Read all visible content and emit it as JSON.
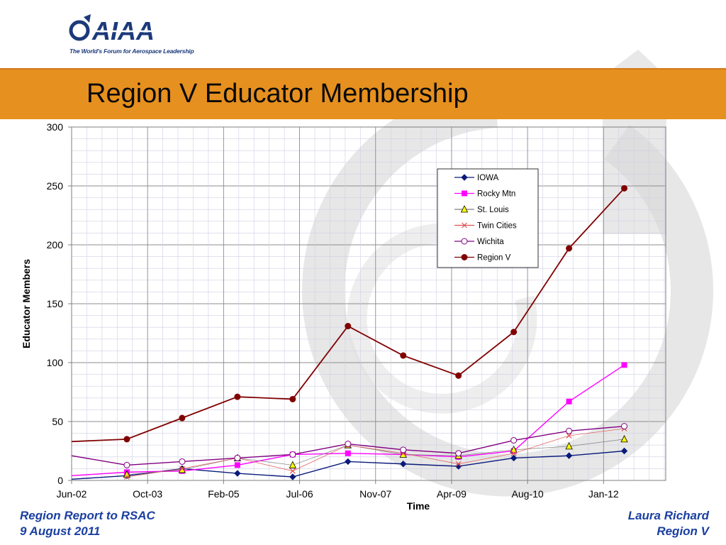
{
  "logo": {
    "wordmark": "AIAA",
    "tagline": "The World's Forum for Aerospace Leadership",
    "icon": "aiaa-arrow-logo-icon"
  },
  "slide": {
    "title": "Region V Educator Membership"
  },
  "footer": {
    "left_line1": "Region Report to RSAC",
    "left_line2": "9 August 2011",
    "right_line1": "Laura Richard",
    "right_line2": "Region V"
  },
  "colors": {
    "title_band": "#e6901f",
    "footer_text": "#1a3fa0",
    "watermark": "#bfbfbf"
  },
  "chart_data": {
    "type": "line",
    "title": "",
    "xlabel": "Time",
    "ylabel": "Educator Members",
    "ylim": [
      0,
      300
    ],
    "yticks": [
      0,
      50,
      100,
      150,
      200,
      250,
      300
    ],
    "xlim": [
      0,
      10.75
    ],
    "xticks": [
      {
        "label": "Jun-02",
        "x": 0
      },
      {
        "label": "Oct-03",
        "x": 1.375
      },
      {
        "label": "Feb-05",
        "x": 2.75
      },
      {
        "label": "Jul-06",
        "x": 4.125
      },
      {
        "label": "Nov-07",
        "x": 5.5
      },
      {
        "label": "Apr-09",
        "x": 6.875
      },
      {
        "label": "Aug-10",
        "x": 8.25
      },
      {
        "label": "Jan-12",
        "x": 9.625
      }
    ],
    "x": [
      1,
      2,
      3,
      4,
      5,
      6,
      7,
      8,
      9,
      10
    ],
    "legend_position": "upper-right",
    "grid": true,
    "series": [
      {
        "name": "IOWA",
        "color": "#0a1a7a",
        "marker": "diamond",
        "values": [
          4,
          10,
          6,
          3,
          16,
          14,
          12,
          19,
          21,
          25
        ],
        "start": 1
      },
      {
        "name": "Rocky Mtn",
        "color": "#ff00ff",
        "marker": "square",
        "values": [
          7,
          8,
          13,
          22,
          23,
          22,
          20,
          25,
          67,
          98
        ],
        "start": 4
      },
      {
        "name": "St. Louis",
        "color": "#7f7f7f",
        "marker": "triangle",
        "values": [
          5,
          9,
          19,
          13,
          30,
          22,
          21,
          26,
          29,
          35
        ],
        "start": null
      },
      {
        "name": "Twin Cities",
        "color": "#e05050",
        "marker": "x",
        "values": [
          3,
          10,
          19,
          8,
          30,
          23,
          14,
          23,
          38,
          44
        ],
        "start": null
      },
      {
        "name": "Wichita",
        "color": "#800080",
        "marker": "circle",
        "values": [
          13,
          16,
          19,
          22,
          31,
          26,
          23,
          34,
          42,
          46
        ],
        "start": 21
      },
      {
        "name": "Region V",
        "color": "#800000",
        "marker": "filled-circle",
        "values": [
          35,
          53,
          71,
          69,
          131,
          106,
          89,
          126,
          197,
          248
        ],
        "start": 33
      }
    ]
  }
}
